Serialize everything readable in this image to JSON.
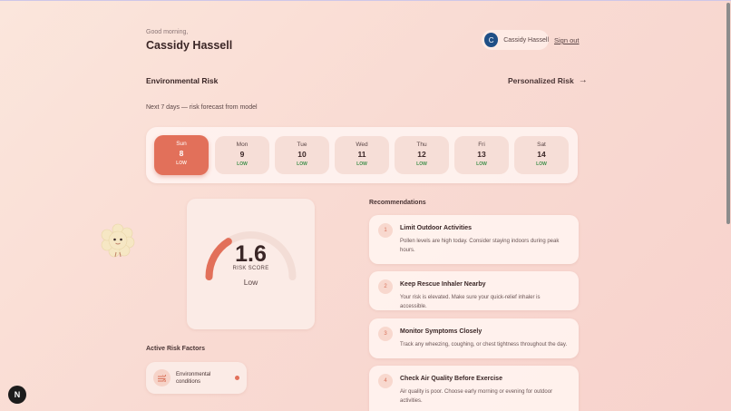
{
  "header": {
    "greeting": "Good morning,",
    "user_name": "Cassidy Hassell",
    "avatar_initial": "C",
    "chip_name": "Cassidy Hassell",
    "sign_out": "Sign out"
  },
  "environmental": {
    "title": "Environmental Risk",
    "personalized_link": "Personalized Risk",
    "subtitle": "Next 7 days — risk forecast from model"
  },
  "forecast": [
    {
      "day": "Sun",
      "date": "8",
      "level": "LOW",
      "active": true
    },
    {
      "day": "Mon",
      "date": "9",
      "level": "LOW"
    },
    {
      "day": "Tue",
      "date": "10",
      "level": "LOW"
    },
    {
      "day": "Wed",
      "date": "11",
      "level": "LOW"
    },
    {
      "day": "Thu",
      "date": "12",
      "level": "LOW"
    },
    {
      "day": "Fri",
      "date": "13",
      "level": "LOW"
    },
    {
      "day": "Sat",
      "date": "14",
      "level": "LOW"
    }
  ],
  "risk": {
    "score": "1.6",
    "score_fraction": 0.32,
    "label": "RISK SCORE",
    "level": "Low"
  },
  "recommendations": {
    "title": "Recommendations",
    "items": [
      {
        "num": "1",
        "title": "Limit Outdoor Activities",
        "body": "Pollen levels are high today. Consider staying indoors during peak hours."
      },
      {
        "num": "2",
        "title": "Keep Rescue Inhaler Nearby",
        "body": "Your risk is elevated. Make sure your quick-relief inhaler is accessible."
      },
      {
        "num": "3",
        "title": "Monitor Symptoms Closely",
        "body": "Track any wheezing, coughing, or chest tightness throughout the day."
      },
      {
        "num": "4",
        "title": "Check Air Quality Before Exercise",
        "body": "Air quality is poor. Choose early morning or evening for outdoor activities."
      }
    ]
  },
  "factors": {
    "title": "Active Risk Factors",
    "items": [
      {
        "label": "Environmental conditions"
      }
    ]
  },
  "badge": "N",
  "colors": {
    "accent": "#e2705a",
    "low_level": "#3f8f4a",
    "avatar": "#1f4f86"
  }
}
